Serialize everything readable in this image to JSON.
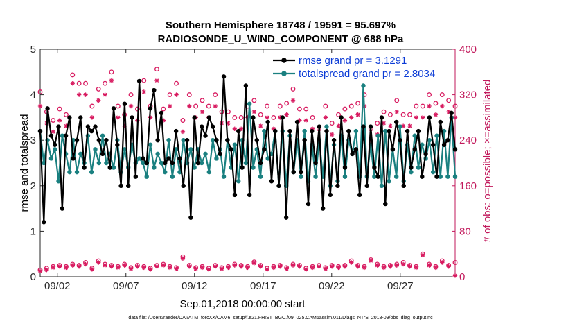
{
  "chart_data": {
    "type": "line",
    "title": [
      "Southern Hemisphere 18748 / 19591 = 95.697%",
      "RADIOSONDE_U_WIND_COMPONENT @ 688 hPa"
    ],
    "xlabel": "Sep.01,2018 00:00:00 start",
    "ylabel": "rmse and totalspread",
    "y2label": "# of obs: o=possible; ×=assimilated",
    "x_tick_labels": [
      "09/02",
      "09/07",
      "09/12",
      "09/17",
      "09/22",
      "09/27"
    ],
    "x_ticks": [
      2,
      7,
      12,
      17,
      22,
      27
    ],
    "xlim": [
      0.75,
      31.0
    ],
    "ylim": [
      0,
      5
    ],
    "y_ticks": [
      "0",
      "1",
      "2",
      "3",
      "4",
      "5"
    ],
    "y2lim": [
      0,
      400
    ],
    "y2_ticks": [
      "0",
      "80",
      "160",
      "240",
      "320",
      "400"
    ],
    "legend": [
      "rmse grand pr = 3.1291",
      "totalspread grand pr = 2.8034"
    ],
    "colors": {
      "rmse": "#000000",
      "spread": "#1a8080",
      "obs": "#d81b60",
      "legend_text": "#0b3bd6",
      "right_axis": "#c2185b"
    },
    "series": [
      {
        "name": "rmse",
        "values": [
          3.2,
          1.2,
          3.7,
          3.1,
          2.9,
          3.3,
          1.5,
          3.1,
          3.5,
          2.6,
          3.0,
          3.5,
          2.4,
          3.3,
          3.2,
          3.3,
          3.0,
          2.7,
          3.0,
          2.4,
          3.7,
          2.9,
          2.0,
          3.8,
          2.0,
          3.5,
          2.2,
          4.3,
          2.6,
          2.5,
          3.7,
          4.1,
          3.0,
          3.6,
          2.5,
          2.6,
          2.5,
          3.2,
          2.6,
          2.0,
          3.0,
          1.3,
          3.5,
          2.5,
          3.3,
          3.1,
          3.5,
          3.3,
          3.0,
          2.7,
          4.4,
          3.0,
          2.8,
          1.8,
          3.2,
          2.4,
          4.2,
          1.8,
          3.5,
          3.0,
          2.5,
          2.8,
          3.4,
          2.1,
          3.2,
          2.0,
          3.5,
          1.3,
          3.2,
          2.3,
          3.4,
          2.3,
          3.0,
          1.6,
          3.2,
          2.5,
          3.3,
          1.5,
          3.2,
          1.8,
          3.0,
          2.0,
          3.5,
          2.4,
          3.2,
          2.7,
          2.8,
          1.8,
          3.3,
          2.0,
          3.3,
          2.4,
          2.2,
          3.5,
          1.6,
          3.2,
          2.8,
          3.4,
          3.0,
          2.0,
          3.2,
          2.4,
          2.8,
          3.2,
          2.2,
          2.7,
          3.5,
          2.9,
          2.2,
          3.4,
          2.9,
          3.0,
          3.6,
          2.8
        ],
        "marker": "circle"
      },
      {
        "name": "totalspread",
        "values": [
          3.2,
          2.5,
          3.0,
          2.6,
          2.8,
          2.1,
          3.1,
          2.7,
          2.3,
          3.0,
          2.3,
          2.7,
          2.5,
          3.1,
          2.3,
          2.8,
          2.5,
          3.1,
          2.5,
          2.7,
          2.4,
          3.0,
          2.3,
          2.8,
          2.4,
          2.9,
          2.5,
          2.6,
          2.5,
          2.2,
          2.9,
          2.4,
          2.7,
          2.5,
          2.3,
          3.0,
          2.2,
          2.8,
          2.3,
          3.0,
          2.5,
          2.8,
          2.4,
          2.8,
          2.5,
          2.7,
          2.3,
          3.0,
          2.6,
          2.8,
          2.2,
          3.0,
          2.4,
          2.9,
          2.1,
          3.0,
          2.5,
          3.8,
          2.4,
          2.8,
          2.2,
          3.2,
          2.6,
          2.7,
          3.2,
          2.0,
          3.2,
          2.0,
          3.1,
          2.3,
          3.0,
          2.2,
          3.2,
          2.1,
          2.9,
          2.2,
          3.0,
          2.2,
          3.3,
          2.0,
          2.9,
          2.1,
          3.1,
          2.2,
          3.0,
          2.7,
          3.2,
          2.2,
          4.2,
          2.2,
          2.9,
          2.2,
          3.1,
          2.0,
          3.2,
          2.1,
          2.8,
          2.2,
          3.3,
          2.1,
          2.9,
          2.3,
          3.1,
          2.4,
          2.9,
          2.6,
          3.0,
          2.3,
          3.1,
          2.2,
          3.2,
          2.2,
          3.5,
          2.2
        ],
        "marker": "circle"
      },
      {
        "name": "obs_possible_top",
        "axis": "right",
        "marker": "o",
        "values": [
          325,
          290,
          275,
          295,
          285,
          355,
          340,
          340,
          300,
          330,
          340,
          360,
          300,
          285,
          320,
          295,
          345,
          300,
          365,
          295,
          320,
          340,
          275,
          320,
          300,
          310,
          300,
          320,
          290,
          290,
          280,
          280,
          300,
          310,
          285,
          300,
          280,
          300,
          305,
          330,
          295,
          295,
          280,
          260,
          300,
          270,
          285,
          295,
          300,
          305,
          320,
          260,
          270,
          290,
          285,
          310,
          285,
          285,
          300,
          300,
          320,
          305,
          320,
          310,
          300
        ]
      },
      {
        "name": "obs_assimilated_top",
        "axis": "right",
        "marker": "x",
        "values": [
          300,
          270,
          255,
          275,
          265,
          340,
          320,
          320,
          280,
          310,
          320,
          345,
          280,
          265,
          300,
          275,
          325,
          280,
          345,
          275,
          300,
          320,
          255,
          300,
          280,
          290,
          280,
          300,
          270,
          270,
          260,
          260,
          280,
          290,
          265,
          280,
          260,
          280,
          285,
          310,
          275,
          275,
          260,
          240,
          280,
          250,
          265,
          275,
          280,
          285,
          300,
          240,
          250,
          270,
          265,
          290,
          265,
          265,
          280,
          280,
          300,
          285,
          300,
          290,
          280
        ]
      },
      {
        "name": "obs_possible_bottom",
        "axis": "right",
        "marker": "o",
        "values": [
          12,
          15,
          18,
          20,
          18,
          22,
          20,
          25,
          15,
          28,
          22,
          20,
          18,
          22,
          16,
          20,
          18,
          15,
          20,
          22,
          18,
          16,
          35,
          20,
          16,
          18,
          15,
          20,
          16,
          18,
          22,
          20,
          18,
          26,
          20,
          15,
          18,
          20,
          16,
          22,
          20,
          15,
          18,
          20,
          16,
          20,
          18,
          20,
          28,
          20,
          18,
          30,
          22,
          18,
          20,
          22,
          25,
          20,
          18,
          40,
          22,
          18,
          28,
          20,
          25
        ]
      },
      {
        "name": "obs_assimilated_bottom",
        "axis": "right",
        "marker": "x",
        "values": [
          10,
          12,
          16,
          18,
          16,
          20,
          18,
          22,
          13,
          25,
          20,
          18,
          16,
          20,
          14,
          18,
          16,
          13,
          18,
          20,
          16,
          14,
          32,
          18,
          14,
          16,
          13,
          18,
          14,
          16,
          20,
          18,
          16,
          24,
          18,
          13,
          16,
          18,
          14,
          20,
          18,
          13,
          16,
          18,
          14,
          18,
          16,
          18,
          25,
          18,
          16,
          28,
          20,
          16,
          18,
          20,
          22,
          18,
          16,
          38,
          20,
          16,
          25,
          18,
          2
        ]
      }
    ]
  },
  "footer": "data file: /Users/raeder/DAI/ATM_forcXX/CAM6_setup/f.e21.FHIST_BGC.f09_025.CAM6assim.011/Diags_NTrS_2018-09/obs_diag_output.nc"
}
